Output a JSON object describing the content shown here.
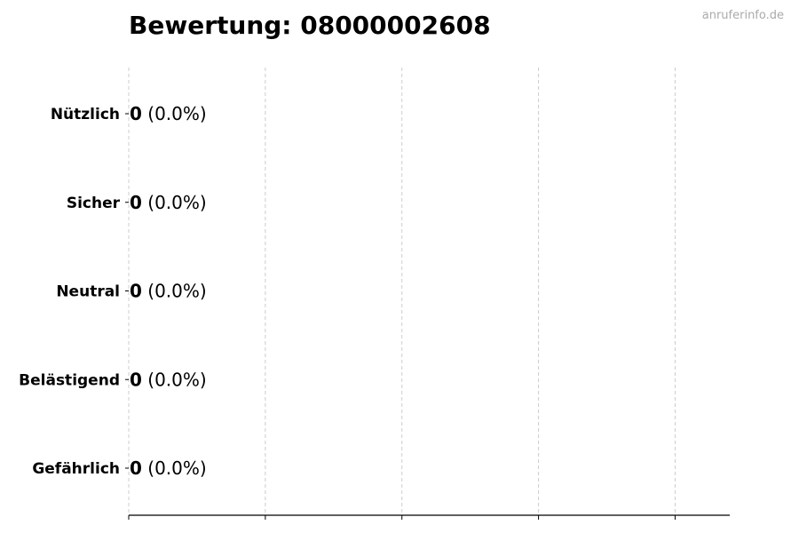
{
  "chart_data": {
    "type": "bar",
    "orientation": "horizontal",
    "title": "Bewertung: 08000002608",
    "watermark": "anruferinfo.de",
    "categories": [
      "Nützlich",
      "Sicher",
      "Neutral",
      "Belästigend",
      "Gefährlich"
    ],
    "values": [
      0,
      0,
      0,
      0,
      0
    ],
    "labels": [
      {
        "count": "0",
        "percent": "(0.0%)"
      },
      {
        "count": "0",
        "percent": "(0.0%)"
      },
      {
        "count": "0",
        "percent": "(0.0%)"
      },
      {
        "count": "0",
        "percent": "(0.0%)"
      },
      {
        "count": "0",
        "percent": "(0.0%)"
      }
    ],
    "xlabel": "",
    "ylabel": "",
    "xlim": [
      0,
      4.4
    ],
    "xticks": [
      0,
      1,
      2,
      3,
      4
    ],
    "xtick_labels_shown": false,
    "grid": "x-dashed",
    "colors": {
      "bar_edge": "#000000",
      "grid": "#cccccc",
      "watermark": "#aaaaaa"
    }
  }
}
